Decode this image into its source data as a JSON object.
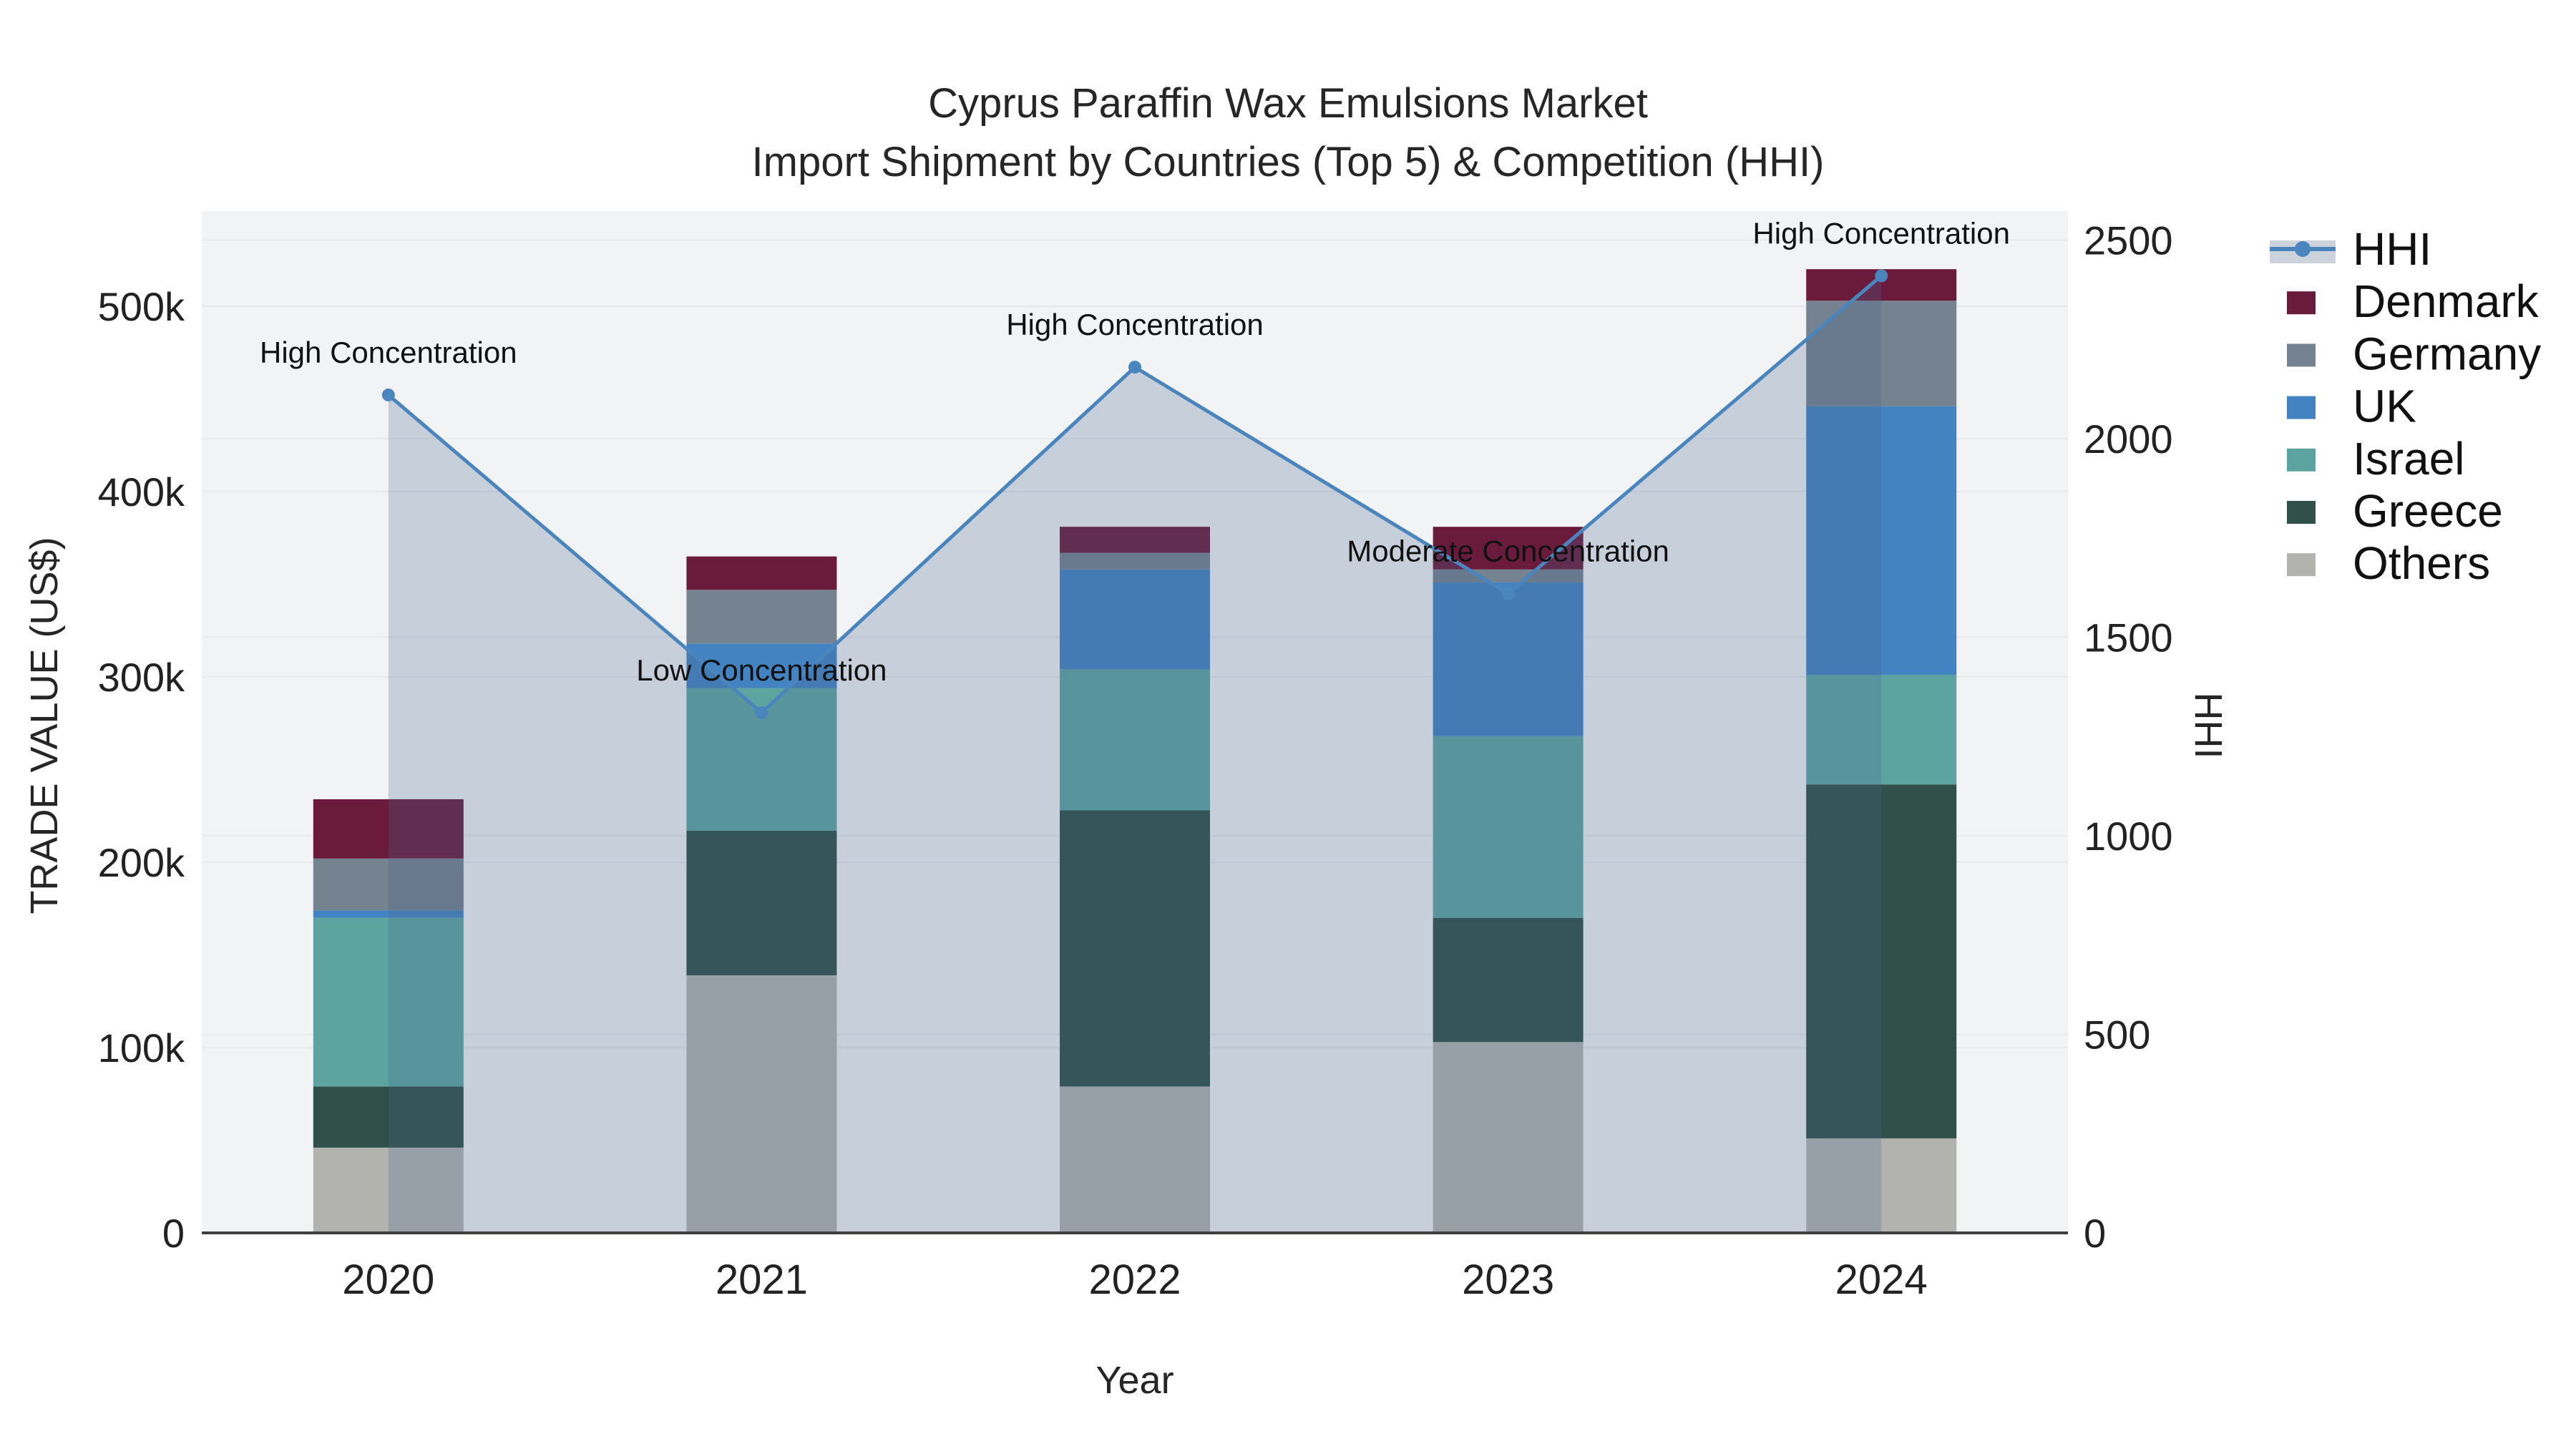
{
  "title": {
    "line1": "Cyprus Paraffin Wax Emulsions Market",
    "line2": "Import Shipment by Countries (Top 5) & Competition (HHI)"
  },
  "chart_data": {
    "type": "bar+line",
    "categories": [
      "2020",
      "2021",
      "2022",
      "2023",
      "2024"
    ],
    "stack_order": [
      "Others",
      "Greece",
      "Israel",
      "UK",
      "Germany",
      "Denmark"
    ],
    "series": [
      {
        "name": "Denmark",
        "color": "#6a1b3c",
        "values": [
          32000,
          18000,
          14000,
          23000,
          17000
        ]
      },
      {
        "name": "Germany",
        "color": "#75828f",
        "values": [
          28000,
          29000,
          9000,
          7000,
          57000
        ]
      },
      {
        "name": "UK",
        "color": "#4383c1",
        "values": [
          4000,
          24000,
          54000,
          83000,
          145000
        ]
      },
      {
        "name": "Israel",
        "color": "#5da4a1",
        "values": [
          91000,
          77000,
          76000,
          98000,
          59000
        ]
      },
      {
        "name": "Greece",
        "color": "#305049",
        "values": [
          33000,
          78000,
          149000,
          67000,
          191000
        ]
      },
      {
        "name": "Others",
        "color": "#b2b3af",
        "values": [
          46000,
          139000,
          79000,
          103000,
          51000
        ]
      }
    ],
    "hhi": {
      "name": "HHI",
      "values": [
        2110,
        1310,
        2180,
        1610,
        2410
      ],
      "line_color": "#4a86bd",
      "fill_color": "rgba(70,100,145,0.25)",
      "legend_band_color": "#ccd3dd"
    },
    "annotations": [
      {
        "year": "2020",
        "text": "High Concentration"
      },
      {
        "year": "2021",
        "text": "Low Concentration"
      },
      {
        "year": "2022",
        "text": "High Concentration"
      },
      {
        "year": "2023",
        "text": "Moderate Concentration"
      },
      {
        "year": "2024",
        "text": "High Concentration"
      }
    ],
    "y_left": {
      "title": "TRADE VALUE (US$)",
      "tick_values": [
        0,
        100000,
        200000,
        300000,
        400000,
        500000
      ],
      "tick_labels": [
        "0",
        "100k",
        "200k",
        "300k",
        "400k",
        "500k"
      ]
    },
    "y_right": {
      "title": "HHI",
      "tick_values": [
        0,
        500,
        1000,
        1500,
        2000,
        2500
      ],
      "tick_labels": [
        "0",
        "500",
        "1000",
        "1500",
        "2000",
        "2500"
      ]
    },
    "x": {
      "title": "Year"
    },
    "style": {
      "plot_bg": "#f2f3f4",
      "grid_color": "#e7e9ec",
      "axis_line_color": "#3f3f3f",
      "tick_text_color": "#222222",
      "annotation_color": "#111111"
    }
  }
}
